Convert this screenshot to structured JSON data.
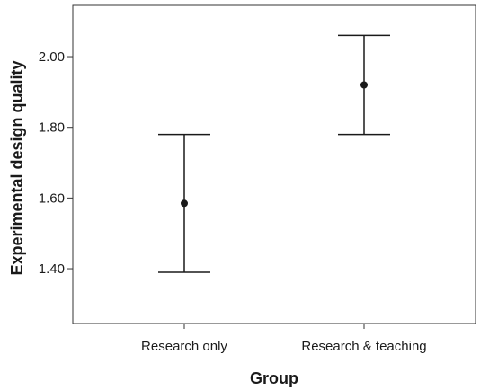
{
  "chart_data": {
    "type": "scatter",
    "title": "",
    "xlabel": "Group",
    "ylabel": "Experimental design quality",
    "categories": [
      "Research only",
      "Research & teaching"
    ],
    "y_ticks": [
      "1.40",
      "1.60",
      "1.80",
      "2.00"
    ],
    "y_tick_values": [
      1.4,
      1.6,
      1.8,
      2.0
    ],
    "ylim": [
      1.245,
      2.145
    ],
    "grid": false,
    "series": [
      {
        "points": [
          {
            "category": "Research only",
            "mean": 1.585,
            "lower": 1.39,
            "upper": 1.78
          },
          {
            "category": "Research & teaching",
            "mean": 1.92,
            "lower": 1.78,
            "upper": 2.06
          }
        ]
      }
    ],
    "colors": {
      "marks": "#1a1a1a",
      "frame": "#333333"
    }
  }
}
